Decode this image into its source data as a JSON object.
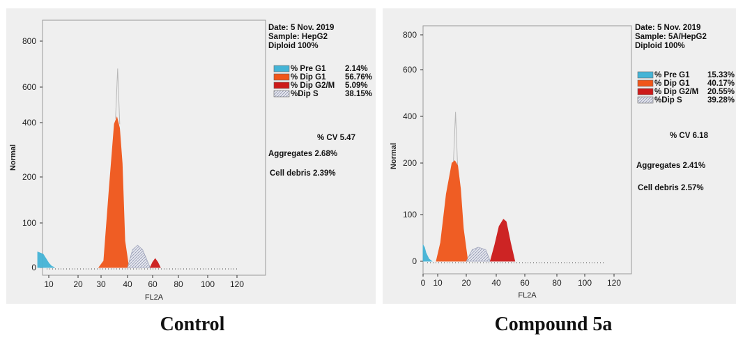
{
  "colors": {
    "pre_g1": "#44b4d6",
    "dip_g1": "#f0561a",
    "dip_g2m": "#cc1a1a",
    "dip_s": "#c9ccd8",
    "panel_bg": "#efefef"
  },
  "panels": [
    {
      "caption": "Control",
      "info": {
        "date": "Date: 5 Nov. 2019",
        "sample": "Sample: HepG2",
        "diploid": "Diploid 100%",
        "cv": "% CV  5.47",
        "aggregates": "Aggregates 2.68%",
        "debris": "Cell debris  2.39%"
      },
      "legend": [
        {
          "label": "% Pre G1",
          "value": "2.14%",
          "color": "#44b4d6"
        },
        {
          "label": "% Dip G1",
          "value": "56.76%",
          "color": "#f0561a"
        },
        {
          "label": "% Dip G2/M",
          "value": "5.09%",
          "color": "#cc1a1a"
        },
        {
          "label": "%Dip S",
          "value": "38.15%",
          "color": "#c9ccd8"
        }
      ]
    },
    {
      "caption": "Compound 5a",
      "info": {
        "date": "Date: 5 Nov. 2019",
        "sample": "Sample: 5A/HepG2",
        "diploid": "Diploid 100%",
        "cv": "% CV  6.18",
        "aggregates": "Aggregates 2.41%",
        "debris": "Cell debris  2.57%"
      },
      "legend": [
        {
          "label": "% Pre G1",
          "value": "15.33%",
          "color": "#44b4d6"
        },
        {
          "label": "% Dip G1",
          "value": "40.17%",
          "color": "#f0561a"
        },
        {
          "label": "% Dip G2/M",
          "value": "20.55%",
          "color": "#cc1a1a"
        },
        {
          "label": "%Dip S",
          "value": "39.28%",
          "color": "#c9ccd8"
        }
      ]
    }
  ],
  "chart_data": [
    {
      "type": "area",
      "xlabel": "FL2A",
      "ylabel": "Normal",
      "xticks": [
        10,
        20,
        30,
        40,
        60,
        80,
        100,
        120
      ],
      "yticks": [
        0,
        100,
        200,
        400,
        600,
        800
      ],
      "series": [
        {
          "name": "% Pre G1",
          "color": "#44b4d6",
          "x": [
            8,
            9,
            10,
            11,
            12
          ],
          "y": [
            35,
            30,
            10,
            3,
            0
          ]
        },
        {
          "name": "% Dip G1",
          "color": "#f0561a",
          "x": [
            29,
            31,
            33,
            35,
            36,
            37,
            38,
            39,
            41
          ],
          "y": [
            0,
            15,
            170,
            395,
            430,
            380,
            250,
            60,
            0
          ]
        },
        {
          "name": "%Dip S",
          "color": "#c9ccd8",
          "x": [
            40,
            44,
            48,
            52,
            55,
            58
          ],
          "y": [
            0,
            40,
            50,
            40,
            20,
            0
          ]
        },
        {
          "name": "% Dip G2/M",
          "color": "#cc1a1a",
          "x": [
            58,
            60,
            62,
            64,
            66
          ],
          "y": [
            0,
            12,
            20,
            12,
            0
          ]
        }
      ]
    },
    {
      "type": "area",
      "xlabel": "FL2A",
      "ylabel": "Normal",
      "xticks": [
        0,
        10,
        20,
        40,
        60,
        80,
        100,
        120
      ],
      "yticks": [
        0,
        100,
        200,
        400,
        600,
        800
      ],
      "series": [
        {
          "name": "% Pre G1",
          "color": "#44b4d6",
          "x": [
            0,
            1,
            2,
            4,
            6
          ],
          "y": [
            35,
            30,
            18,
            5,
            0
          ]
        },
        {
          "name": "% Dip G1",
          "color": "#f0561a",
          "x": [
            9,
            11,
            13,
            15,
            16,
            17,
            18,
            19,
            21
          ],
          "y": [
            0,
            40,
            140,
            200,
            210,
            195,
            150,
            70,
            0
          ]
        },
        {
          "name": "%Dip S",
          "color": "#c9ccd8",
          "x": [
            20,
            24,
            28,
            33,
            36
          ],
          "y": [
            0,
            25,
            30,
            25,
            0
          ]
        },
        {
          "name": "% Dip G2/M",
          "color": "#cc1a1a",
          "x": [
            36,
            39,
            42,
            45,
            47,
            50,
            53
          ],
          "y": [
            0,
            35,
            75,
            90,
            85,
            40,
            0
          ]
        }
      ]
    }
  ]
}
